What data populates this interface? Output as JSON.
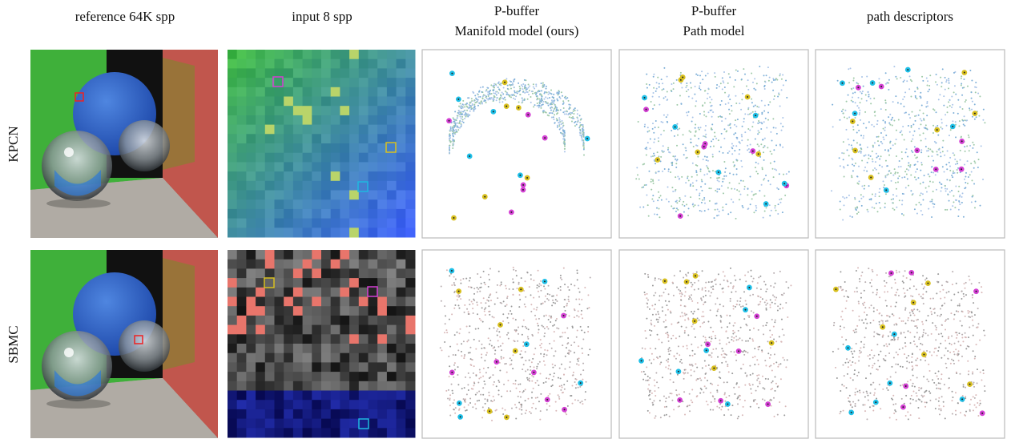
{
  "columns": [
    {
      "lines": [
        "reference 64K spp"
      ]
    },
    {
      "lines": [
        "input 8 spp"
      ]
    },
    {
      "lines": [
        "P-buffer",
        "Manifold model (ours)"
      ]
    },
    {
      "lines": [
        "P-buffer",
        "Path model"
      ]
    },
    {
      "lines": [
        "path descriptors"
      ]
    }
  ],
  "rows": [
    "KPCN",
    "SBMC"
  ]
}
